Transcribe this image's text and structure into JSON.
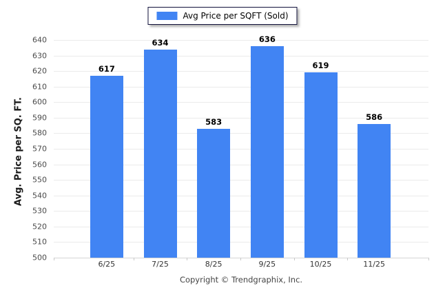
{
  "legend": {
    "label": "Avg Price per SQFT (Sold)",
    "swatch_color": "#4184f3"
  },
  "chart_data": {
    "type": "bar",
    "title": "",
    "categories": [
      "6/25",
      "7/25",
      "8/25",
      "9/25",
      "10/25",
      "11/25"
    ],
    "series": [
      {
        "name": "Avg Price per SQFT (Sold)",
        "values": [
          617,
          634,
          583,
          636,
          619,
          586
        ]
      }
    ],
    "xlabel": "",
    "ylabel": "Avg. Price per SQ. FT.",
    "ylim": [
      500,
      640
    ],
    "ytick_step": 10,
    "yticks": [
      500,
      510,
      520,
      530,
      540,
      550,
      560,
      570,
      580,
      590,
      600,
      610,
      620,
      630,
      640
    ],
    "grid": "horizontal",
    "legend_position": "top-center",
    "bar_color": "#4184f3",
    "gridline_color": "#eaeaea",
    "axis_line_color": "#d4d4d4",
    "value_labels_shown": true
  },
  "footer": {
    "copyright": "Copyright © Trendgraphix, Inc."
  }
}
